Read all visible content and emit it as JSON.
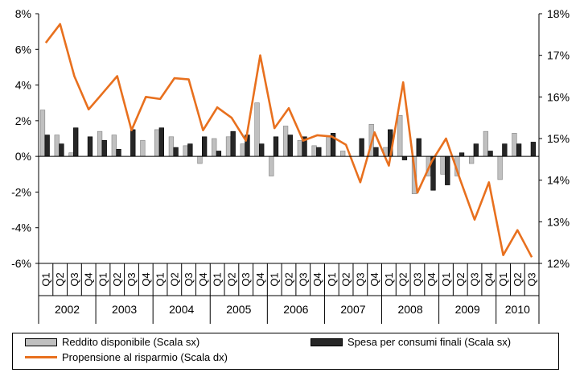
{
  "chart_data": {
    "type": "bar",
    "categories": [
      "Q1",
      "Q2",
      "Q3",
      "Q4",
      "Q1",
      "Q2",
      "Q3",
      "Q4",
      "Q1",
      "Q2",
      "Q3",
      "Q4",
      "Q1",
      "Q2",
      "Q3",
      "Q4",
      "Q1",
      "Q2",
      "Q3",
      "Q4",
      "Q1",
      "Q2",
      "Q3",
      "Q4",
      "Q1",
      "Q2",
      "Q3",
      "Q4",
      "Q1",
      "Q2",
      "Q3",
      "Q4",
      "Q1",
      "Q2",
      "Q3"
    ],
    "years": [
      "2002",
      "2003",
      "2004",
      "2005",
      "2006",
      "2007",
      "2008",
      "2009",
      "2010"
    ],
    "year_quarter_counts": [
      4,
      4,
      4,
      4,
      4,
      4,
      4,
      4,
      3
    ],
    "series": [
      {
        "name": "Reddito disponibile (Scala sx)",
        "axis": "left",
        "render": "bar",
        "color": "#c0c0c0",
        "values": [
          2.6,
          1.2,
          0.2,
          0,
          1.4,
          1.2,
          0,
          0.9,
          1.5,
          1.1,
          0.6,
          -0.4,
          1.0,
          1.1,
          0.7,
          3.0,
          -1.1,
          1.7,
          0.9,
          0.6,
          1.1,
          0.3,
          0,
          1.8,
          0.5,
          2.3,
          -2.1,
          -1.1,
          -1.0,
          -1.1,
          -0.4,
          1.4,
          -1.3,
          1.3,
          0
        ]
      },
      {
        "name": "Spesa per consumi finali (Scala sx)",
        "axis": "left",
        "render": "bar",
        "color": "#262626",
        "values": [
          1.2,
          0.7,
          1.6,
          1.1,
          0.9,
          0.4,
          1.5,
          0,
          1.6,
          0.5,
          0.7,
          1.1,
          0.3,
          1.4,
          1.2,
          0.7,
          1.1,
          1.2,
          1.1,
          0.5,
          1.3,
          0,
          1.0,
          0.5,
          1.5,
          -0.2,
          1.0,
          -1.9,
          -1.6,
          0.2,
          0.7,
          0.3,
          0.7,
          0.7,
          0.8
        ]
      },
      {
        "name": "Propensione al risparmio (Scala dx)",
        "axis": "right",
        "render": "line",
        "color": "#e8701e",
        "values": [
          17.3,
          17.75,
          16.5,
          15.7,
          16.1,
          16.5,
          15.2,
          16.0,
          15.95,
          16.45,
          16.42,
          15.2,
          15.75,
          15.5,
          14.95,
          17.0,
          15.25,
          15.73,
          14.95,
          15.08,
          15.05,
          14.85,
          13.95,
          15.15,
          14.35,
          16.35,
          13.7,
          14.45,
          15.0,
          14.0,
          13.05,
          13.95,
          12.2,
          12.8,
          12.15
        ]
      }
    ],
    "y_left": {
      "min": -6,
      "max": 8,
      "step": 2,
      "tick_labels": [
        "-6%",
        "-4%",
        "-2%",
        "0%",
        "2%",
        "4%",
        "6%",
        "8%"
      ]
    },
    "y_right": {
      "min": 12,
      "max": 18,
      "step": 1,
      "tick_labels": [
        "12%",
        "13%",
        "14%",
        "15%",
        "16%",
        "17%",
        "18%"
      ]
    },
    "grid": false,
    "legend_position": "bottom"
  },
  "legend": [
    {
      "label": "Reddito disponibile (Scala sx)",
      "kind": "bar-light",
      "color": "#c0c0c0"
    },
    {
      "label": "Spesa per consumi finali (Scala sx)",
      "kind": "bar-dark",
      "color": "#262626"
    },
    {
      "label": "Propensione al risparmio (Scala dx)",
      "kind": "line",
      "color": "#e8701e"
    }
  ]
}
